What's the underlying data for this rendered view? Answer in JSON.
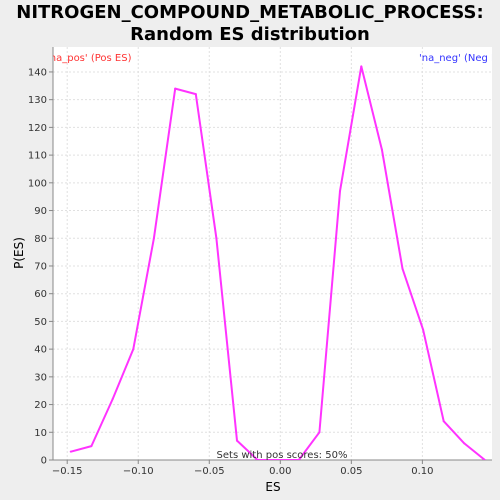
{
  "chart_data": {
    "type": "line",
    "title_line1": "NITROGEN_COMPOUND_METABOLIC_PROCESS:",
    "title_line2": "Random ES distribution",
    "xlabel": "ES",
    "ylabel": "P(ES)",
    "xlim": [
      -0.16,
      0.149
    ],
    "ylim": [
      0,
      149
    ],
    "grid": true,
    "x_ticks": [
      -0.15,
      -0.1,
      -0.05,
      0.0,
      0.05,
      0.1
    ],
    "x_tick_labels": [
      "−0.15",
      "−0.10",
      "−0.05",
      "0.00",
      "0.05",
      "0.10"
    ],
    "y_ticks": [
      0,
      10,
      20,
      30,
      40,
      50,
      60,
      70,
      80,
      90,
      100,
      110,
      120,
      130,
      140
    ],
    "y_tick_labels": [
      "0",
      "10",
      "20",
      "30",
      "40",
      "50",
      "60",
      "70",
      "80",
      "90",
      "100",
      "110",
      "120",
      "130",
      "140"
    ],
    "series": [
      {
        "color": "#ff33ff",
        "x": [
          -0.1475,
          -0.133,
          -0.118,
          -0.1035,
          -0.089,
          -0.074,
          -0.0595,
          -0.045,
          -0.0305,
          -0.016,
          -0.0015,
          0.013,
          0.0275,
          0.042,
          0.057,
          0.0715,
          0.086,
          0.1005,
          0.115,
          0.1295,
          0.144
        ],
        "y": [
          3,
          5,
          22,
          40,
          80,
          134,
          132,
          80,
          7,
          0,
          0,
          0,
          10,
          97,
          142,
          112,
          69,
          47,
          14,
          6,
          0
        ]
      }
    ],
    "annotations": {
      "left": "'na_pos' (Pos ES)",
      "right": "'na_neg' (Neg ES)",
      "bottom": "Sets with pos scores: 50%"
    },
    "annotation_colors": {
      "left": "#ff3333",
      "right": "#3333ff",
      "bottom": "#333333"
    }
  }
}
